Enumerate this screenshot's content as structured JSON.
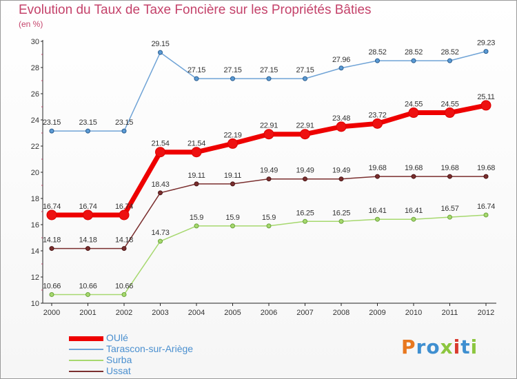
{
  "title": "Evolution du Taux de Taxe Foncière sur les Propriétés Bâties",
  "subtitle": "(en %)",
  "logo": {
    "text": "Proxiti",
    "colors": [
      "#e8781f",
      "#3f8fd0",
      "#3f8fd0",
      "#8cc63f",
      "#d93a2e",
      "#3f8fd0",
      "#8cc63f"
    ]
  },
  "chart_data": {
    "type": "line",
    "title": "Evolution du Taux de Taxe Foncière sur les Propriétés Bâties",
    "ylabel": "(en %)",
    "xlabel": "",
    "ylim": [
      10,
      30
    ],
    "yticks": [
      10,
      12,
      14,
      16,
      18,
      20,
      22,
      24,
      26,
      28,
      30
    ],
    "grid": false,
    "legend_position": "bottom-left",
    "categories": [
      "2000",
      "2001",
      "2002",
      "2003",
      "2004",
      "2005",
      "2006",
      "2007",
      "2008",
      "2009",
      "2010",
      "2011",
      "2012"
    ],
    "series": [
      {
        "name": "OUlé",
        "color": "#ee0000",
        "values": [
          16.74,
          16.74,
          16.74,
          21.54,
          21.54,
          22.19,
          22.91,
          22.91,
          23.48,
          23.72,
          24.55,
          24.55,
          25.11
        ],
        "labels": [
          "16.74",
          "16.74",
          "16.74",
          "21.54",
          "21.54",
          "22.19",
          "22.91",
          "22.91",
          "23.48",
          "23.72",
          "24.55",
          "24.55",
          "25.11"
        ]
      },
      {
        "name": "Tarascon-sur-Ariège",
        "color": "#6fa3d6",
        "values": [
          23.15,
          23.15,
          23.15,
          29.15,
          27.15,
          27.15,
          27.15,
          27.15,
          27.96,
          28.52,
          28.52,
          28.52,
          29.23
        ],
        "labels": [
          "23.15",
          "23.15",
          "23.15",
          "29.15",
          "27.15",
          "27.15",
          "27.15",
          "27.15",
          "27.96",
          "28.52",
          "28.52",
          "28.52",
          "29.23"
        ]
      },
      {
        "name": "Surba",
        "color": "#a6d86e",
        "values": [
          10.66,
          10.66,
          10.66,
          14.73,
          15.9,
          15.9,
          15.9,
          16.25,
          16.25,
          16.41,
          16.41,
          16.57,
          16.74
        ],
        "labels": [
          "10.66",
          "10.66",
          "10.66",
          "14.73",
          "15.9",
          "15.9",
          "15.9",
          "16.25",
          "16.25",
          "16.41",
          "16.41",
          "16.57",
          "16.74"
        ]
      },
      {
        "name": "Ussat",
        "color": "#7a2e2e",
        "values": [
          14.18,
          14.18,
          14.18,
          18.43,
          19.11,
          19.11,
          19.49,
          19.49,
          19.49,
          19.68,
          19.68,
          19.68,
          19.68
        ],
        "labels": [
          "14.18",
          "14.18",
          "14.18",
          "18.43",
          "19.11",
          "19.11",
          "19.49",
          "19.49",
          "19.49",
          "19.68",
          "19.68",
          "19.68",
          "19.68"
        ]
      }
    ]
  }
}
